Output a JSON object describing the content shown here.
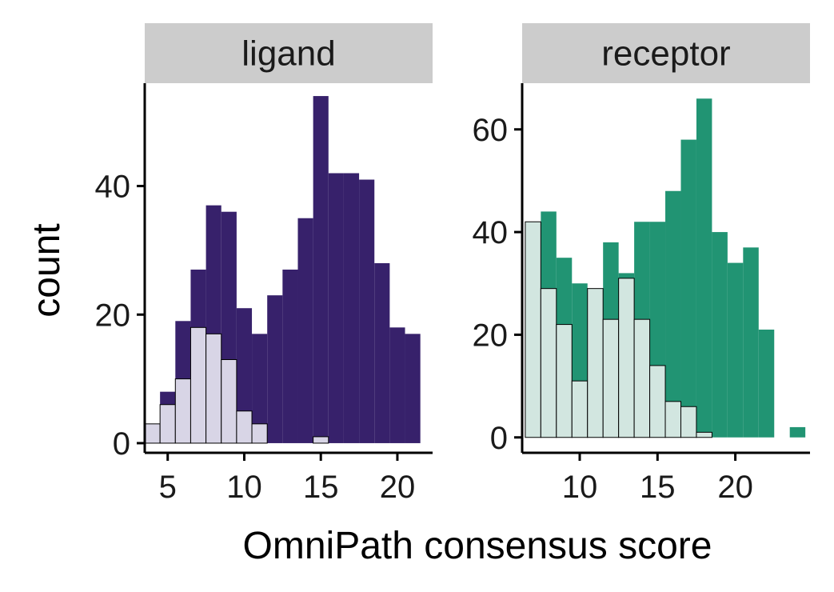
{
  "chart_data": {
    "type": "histogram",
    "xlabel": "OmniPath consensus score",
    "ylabel": "count",
    "grid": false,
    "legend": "none",
    "panels": [
      {
        "strip": "ligand",
        "xlim": [
          3.5,
          22.3
        ],
        "ylim": [
          -1.5,
          56
        ],
        "xticks": [
          5,
          10,
          15,
          20
        ],
        "yticks": [
          0,
          20,
          40
        ],
        "binwidth": 1,
        "series": [
          {
            "fill": "#37216b",
            "outline": "none",
            "bins": [
              {
                "x": 4,
                "count": 3
              },
              {
                "x": 5,
                "count": 8
              },
              {
                "x": 6,
                "count": 19
              },
              {
                "x": 7,
                "count": 27
              },
              {
                "x": 8,
                "count": 37
              },
              {
                "x": 9,
                "count": 36
              },
              {
                "x": 10,
                "count": 21
              },
              {
                "x": 11,
                "count": 17
              },
              {
                "x": 12,
                "count": 23
              },
              {
                "x": 13,
                "count": 27
              },
              {
                "x": 14,
                "count": 35
              },
              {
                "x": 15,
                "count": 54
              },
              {
                "x": 16,
                "count": 42
              },
              {
                "x": 17,
                "count": 42
              },
              {
                "x": 18,
                "count": 41
              },
              {
                "x": 19,
                "count": 28
              },
              {
                "x": 20,
                "count": 18
              },
              {
                "x": 21,
                "count": 17
              }
            ]
          },
          {
            "fill": "#d8d5e6",
            "outline": "#000000",
            "bins": [
              {
                "x": 4,
                "count": 3
              },
              {
                "x": 5,
                "count": 6
              },
              {
                "x": 6,
                "count": 10
              },
              {
                "x": 7,
                "count": 18
              },
              {
                "x": 8,
                "count": 17
              },
              {
                "x": 9,
                "count": 13
              },
              {
                "x": 10,
                "count": 5
              },
              {
                "x": 11,
                "count": 3
              },
              {
                "x": 15,
                "count": 1
              }
            ]
          }
        ]
      },
      {
        "strip": "receptor",
        "xlim": [
          6.3,
          24.8
        ],
        "ylim": [
          -3,
          69
        ],
        "xticks": [
          10,
          15,
          20
        ],
        "yticks": [
          0,
          20,
          40,
          60
        ],
        "binwidth": 1,
        "series": [
          {
            "fill": "#219473",
            "outline": "none",
            "bins": [
              {
                "x": 7,
                "count": 23
              },
              {
                "x": 8,
                "count": 44
              },
              {
                "x": 9,
                "count": 35
              },
              {
                "x": 10,
                "count": 30
              },
              {
                "x": 11,
                "count": 18
              },
              {
                "x": 12,
                "count": 38
              },
              {
                "x": 13,
                "count": 32
              },
              {
                "x": 14,
                "count": 42
              },
              {
                "x": 15,
                "count": 42
              },
              {
                "x": 16,
                "count": 48
              },
              {
                "x": 17,
                "count": 58
              },
              {
                "x": 18,
                "count": 66
              },
              {
                "x": 19,
                "count": 40
              },
              {
                "x": 20,
                "count": 34
              },
              {
                "x": 21,
                "count": 37
              },
              {
                "x": 22,
                "count": 21
              },
              {
                "x": 23,
                "count": 0
              },
              {
                "x": 24,
                "count": 2
              }
            ]
          },
          {
            "fill": "#d2e6e0",
            "outline": "#000000",
            "bins": [
              {
                "x": 7,
                "count": 42
              },
              {
                "x": 8,
                "count": 29
              },
              {
                "x": 9,
                "count": 22
              },
              {
                "x": 10,
                "count": 11
              },
              {
                "x": 11,
                "count": 29
              },
              {
                "x": 12,
                "count": 23
              },
              {
                "x": 13,
                "count": 31
              },
              {
                "x": 14,
                "count": 23
              },
              {
                "x": 15,
                "count": 14
              },
              {
                "x": 16,
                "count": 7
              },
              {
                "x": 17,
                "count": 6
              },
              {
                "x": 18,
                "count": 1
              },
              {
                "x": 19,
                "count": 0
              },
              {
                "x": 20,
                "count": 0
              },
              {
                "x": 21,
                "count": 0
              },
              {
                "x": 22,
                "count": 0
              }
            ]
          }
        ]
      }
    ]
  }
}
